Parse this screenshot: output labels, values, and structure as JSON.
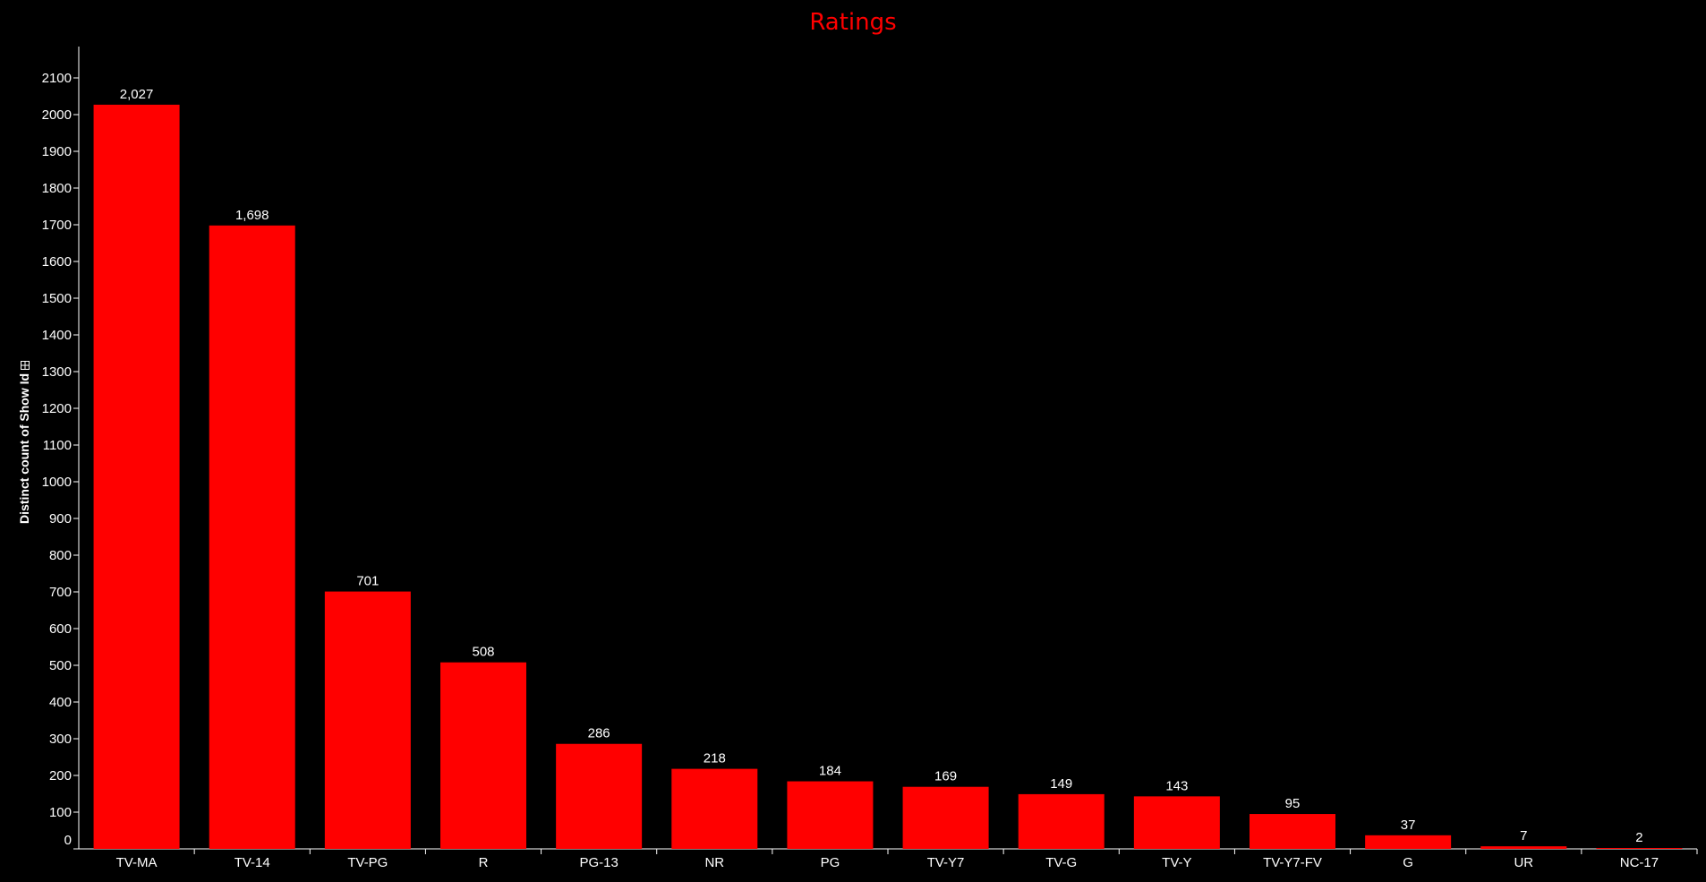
{
  "chart_data": {
    "type": "bar",
    "title": "Ratings",
    "xlabel": "",
    "ylabel": "Distinct count of Show Id",
    "ylim": [
      0,
      2150
    ],
    "yticks": [
      0,
      100,
      200,
      300,
      400,
      500,
      600,
      700,
      800,
      900,
      1000,
      1100,
      1200,
      1300,
      1400,
      1500,
      1600,
      1700,
      1800,
      1900,
      2000,
      2100
    ],
    "categories": [
      "TV-MA",
      "TV-14",
      "TV-PG",
      "R",
      "PG-13",
      "NR",
      "PG",
      "TV-Y7",
      "TV-G",
      "TV-Y",
      "TV-Y7-FV",
      "G",
      "UR",
      "NC-17"
    ],
    "values": [
      2027,
      1698,
      701,
      508,
      286,
      218,
      184,
      169,
      149,
      143,
      95,
      37,
      7,
      2
    ],
    "data_labels": [
      "2,027",
      "1,698",
      "701",
      "508",
      "286",
      "218",
      "184",
      "169",
      "149",
      "143",
      "95",
      "37",
      "7",
      "2"
    ],
    "grid": false,
    "legend": "none",
    "colors": {
      "background": "#000000",
      "bar": "#ff0000",
      "title": "#ff0000",
      "text": "#ffffff",
      "axis": "#ffffff"
    }
  }
}
